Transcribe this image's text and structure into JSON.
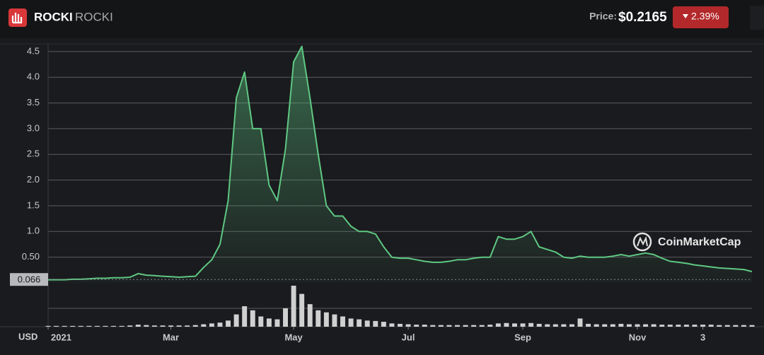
{
  "header": {
    "symbol": "ROCKI",
    "name": "ROCKI",
    "price_label": "Price:",
    "price": "$0.2165",
    "change": "2.39%"
  },
  "chart_data": {
    "type": "area",
    "unit": "USD",
    "watermark": "CoinMarketCap",
    "color": "#5fc883",
    "categories": [
      "2021",
      null,
      null,
      null,
      null,
      null,
      null,
      null,
      null,
      null,
      null,
      null,
      null,
      null,
      null,
      "Mar",
      null,
      null,
      null,
      null,
      null,
      null,
      null,
      null,
      null,
      null,
      null,
      null,
      null,
      null,
      "May",
      null,
      null,
      null,
      null,
      null,
      null,
      null,
      null,
      null,
      null,
      null,
      null,
      null,
      "Jul",
      null,
      null,
      null,
      null,
      null,
      null,
      null,
      null,
      null,
      null,
      null,
      null,
      null,
      "Sep",
      null,
      null,
      null,
      null,
      null,
      null,
      null,
      null,
      null,
      null,
      null,
      null,
      null,
      "Nov",
      null,
      null,
      null,
      null,
      null,
      null,
      null,
      "3",
      null,
      null,
      null,
      null,
      null,
      null
    ],
    "values": [
      0.06,
      0.06,
      0.06,
      0.07,
      0.07,
      0.08,
      0.09,
      0.09,
      0.1,
      0.1,
      0.11,
      0.18,
      0.15,
      0.14,
      0.13,
      0.12,
      0.11,
      0.12,
      0.13,
      0.3,
      0.45,
      0.75,
      1.6,
      3.6,
      4.1,
      3.0,
      3.0,
      1.9,
      1.6,
      2.6,
      4.3,
      4.6,
      3.6,
      2.5,
      1.5,
      1.3,
      1.3,
      1.1,
      1.0,
      1.0,
      0.95,
      0.7,
      0.5,
      0.48,
      0.48,
      0.45,
      0.42,
      0.4,
      0.4,
      0.42,
      0.45,
      0.45,
      0.48,
      0.5,
      0.5,
      0.9,
      0.85,
      0.85,
      0.9,
      1.0,
      0.7,
      0.65,
      0.6,
      0.5,
      0.48,
      0.52,
      0.5,
      0.5,
      0.5,
      0.52,
      0.55,
      0.52,
      0.55,
      0.58,
      0.55,
      0.48,
      0.42,
      0.4,
      0.38,
      0.35,
      0.33,
      0.31,
      0.29,
      0.28,
      0.27,
      0.26,
      0.22
    ],
    "volume": [
      0.02,
      0.02,
      0.02,
      0.02,
      0.02,
      0.02,
      0.02,
      0.02,
      0.02,
      0.02,
      0.03,
      0.05,
      0.04,
      0.03,
      0.03,
      0.03,
      0.03,
      0.03,
      0.04,
      0.06,
      0.08,
      0.1,
      0.15,
      0.3,
      0.5,
      0.4,
      0.25,
      0.2,
      0.18,
      0.45,
      1.0,
      0.8,
      0.55,
      0.4,
      0.35,
      0.3,
      0.25,
      0.2,
      0.18,
      0.15,
      0.14,
      0.12,
      0.08,
      0.07,
      0.06,
      0.05,
      0.05,
      0.04,
      0.04,
      0.04,
      0.04,
      0.04,
      0.04,
      0.04,
      0.05,
      0.08,
      0.09,
      0.08,
      0.08,
      0.09,
      0.07,
      0.06,
      0.06,
      0.06,
      0.06,
      0.2,
      0.07,
      0.06,
      0.06,
      0.06,
      0.07,
      0.06,
      0.06,
      0.06,
      0.06,
      0.05,
      0.05,
      0.05,
      0.05,
      0.05,
      0.05,
      0.05,
      0.04,
      0.04,
      0.04,
      0.04,
      0.04
    ],
    "volume_color": "#d0d0d0",
    "volume_ylim": [
      0,
      1
    ],
    "ylim": [
      0,
      4.65
    ],
    "yticks": [
      {
        "value": 0.5,
        "label": "0.50"
      },
      {
        "value": 1,
        "label": "1.0"
      },
      1.5,
      {
        "value": 2,
        "label": "2.0"
      },
      2.5,
      {
        "value": 3,
        "label": "3.0"
      },
      3.5,
      {
        "value": 4,
        "label": "4.0"
      },
      4.5
    ],
    "marker": {
      "value": 0.066,
      "label": "0.066"
    },
    "grid": true
  }
}
